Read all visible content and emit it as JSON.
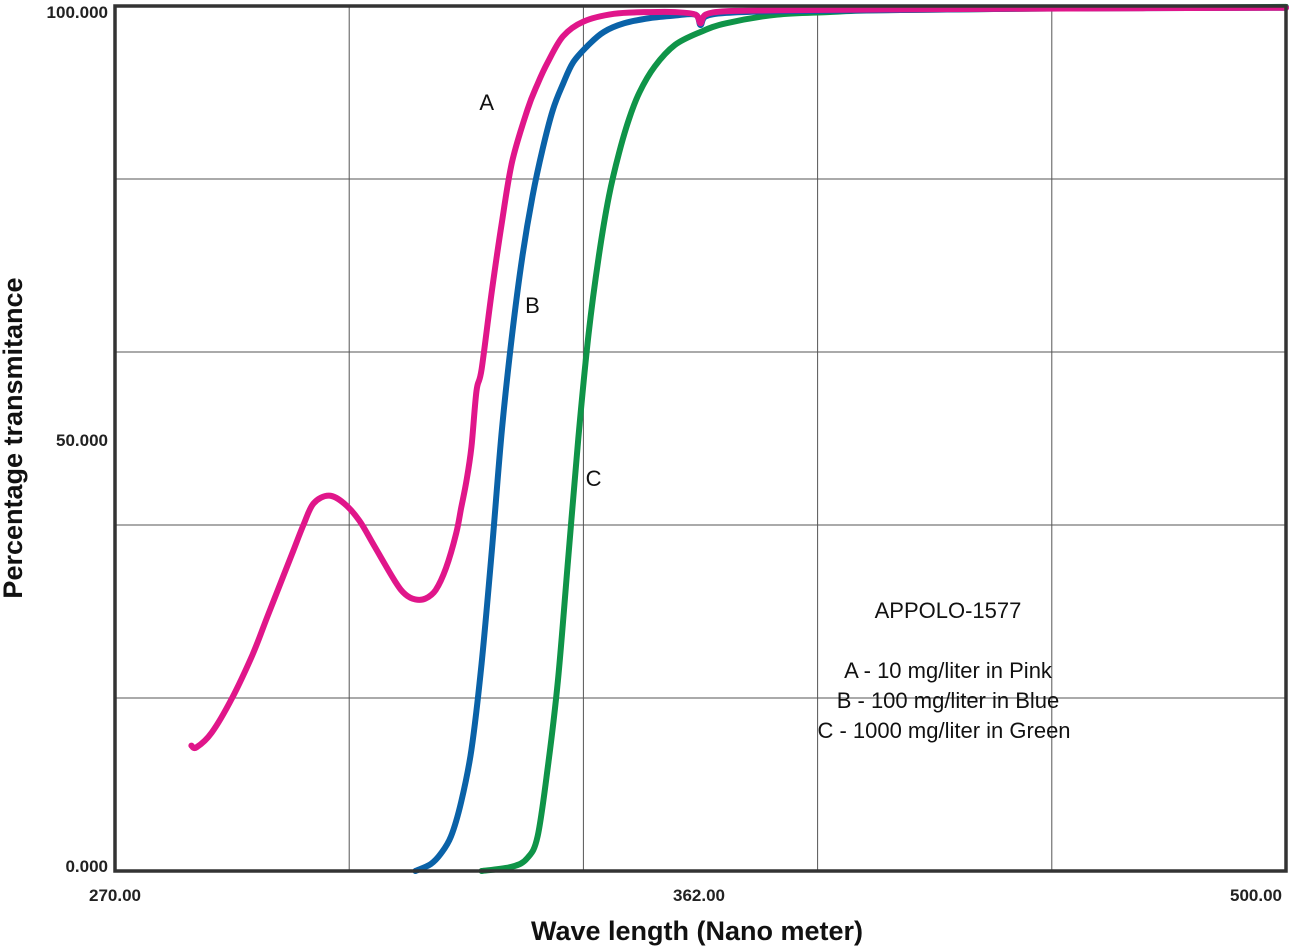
{
  "chart_data": {
    "type": "line",
    "title": "",
    "xlabel": "Wave length (Nano meter)",
    "ylabel": "Percentage transmitance",
    "xlim": [
      270,
      500
    ],
    "ylim": [
      0,
      100
    ],
    "x_ticks": [
      "270.00",
      "362.00",
      "500.00"
    ],
    "y_ticks": [
      "0.000",
      "50.000",
      "100.000"
    ],
    "grid": true,
    "legend": {
      "title": "APPOLO-1577",
      "entries": [
        "A - 10 mg/liter in Pink",
        "B - 100 mg/liter in Blue",
        "C - 1000 mg/liter in Green"
      ],
      "placement": "bottom-right"
    },
    "series": [
      {
        "name": "A",
        "color": "#e0168a",
        "x": [
          285,
          286,
          289,
          293,
          297,
          300,
          303,
          305,
          307,
          309,
          312,
          315,
          318,
          321,
          325,
          327,
          329,
          331,
          333,
          335,
          337,
          338,
          339,
          340,
          341,
          342,
          344,
          346,
          348,
          351,
          353,
          355,
          358,
          362,
          368,
          375,
          380,
          384,
          385,
          386,
          390,
          400,
          420,
          450,
          500
        ],
        "y": [
          14.5,
          14.3,
          16,
          20,
          25,
          29.5,
          34,
          37,
          40,
          42.5,
          43.4,
          42.5,
          40.5,
          37.5,
          33.5,
          32,
          31.4,
          31.5,
          32.5,
          35,
          39,
          42,
          45,
          49,
          55.5,
          58,
          67,
          75,
          82,
          88,
          91,
          93.5,
          96.5,
          98.2,
          99.1,
          99.3,
          99.3,
          99.0,
          98.0,
          99.0,
          99.4,
          99.5,
          99.6,
          99.7,
          99.8
        ]
      },
      {
        "name": "B",
        "color": "#0a62a8",
        "x": [
          329,
          332,
          334,
          336,
          338,
          340,
          342,
          344,
          346,
          348,
          350,
          352,
          354,
          356,
          358,
          360,
          363,
          366,
          370,
          375,
          380,
          384,
          385,
          386,
          390,
          400,
          420,
          450,
          500
        ],
        "y": [
          0,
          0.8,
          2,
          4,
          8,
          14,
          24,
          37,
          51,
          62,
          71,
          78,
          83.5,
          88,
          91,
          93.5,
          95.5,
          97,
          98,
          98.6,
          98.9,
          99.0,
          97.8,
          98.8,
          99.2,
          99.4,
          99.5,
          99.7,
          99.8
        ]
      },
      {
        "name": "C",
        "color": "#0f9448",
        "x": [
          342,
          348,
          351,
          353,
          355,
          357,
          359,
          361,
          363,
          365,
          367,
          369,
          371,
          373,
          376,
          380,
          385,
          390,
          400,
          410,
          420,
          450,
          500
        ],
        "y": [
          0,
          0.5,
          1.5,
          4,
          12,
          22,
          36,
          50,
          62,
          71,
          78,
          83,
          87,
          90,
          93,
          95.5,
          97,
          98,
          99,
          99.3,
          99.5,
          99.7,
          99.9
        ]
      }
    ],
    "annotations": [
      {
        "text": "A",
        "x": 343,
        "y": 88
      },
      {
        "text": "B",
        "x": 352,
        "y": 64.5
      },
      {
        "text": "C",
        "x": 364,
        "y": 44.5
      }
    ]
  }
}
